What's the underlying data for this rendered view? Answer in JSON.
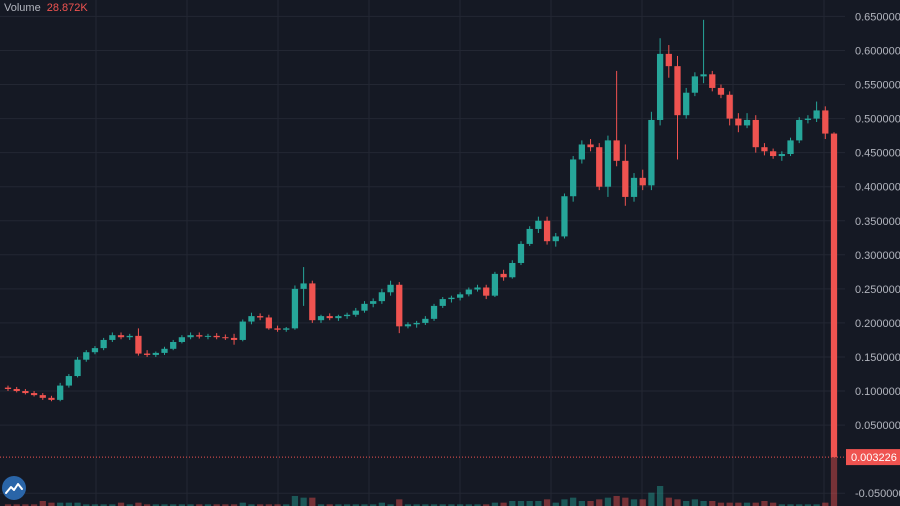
{
  "legend": {
    "label": "Volume",
    "value": "28.872K"
  },
  "colors": {
    "up": "#26a69a",
    "down": "#ef5350",
    "background": "#151924",
    "grid": "#232733",
    "axis_text": "#b2b5be"
  },
  "last_price_label": "0.003226",
  "logo_icon": "tradingview-logo-icon",
  "chart_data": {
    "type": "candlestick",
    "y_axis": {
      "ticks": [
        "0.650000",
        "0.600000",
        "0.550000",
        "0.500000",
        "0.450000",
        "0.400000",
        "0.350000",
        "0.300000",
        "0.250000",
        "0.200000",
        "0.150000",
        "0.100000",
        "0.050000",
        "-0.050000"
      ],
      "range": [
        -0.06,
        0.68
      ],
      "position": "right"
    },
    "grid": true,
    "candles": [
      [
        0.105,
        0.108,
        0.1,
        0.103,
        1
      ],
      [
        0.103,
        0.106,
        0.098,
        0.1,
        1
      ],
      [
        0.1,
        0.103,
        0.095,
        0.097,
        1
      ],
      [
        0.097,
        0.1,
        0.092,
        0.094,
        1
      ],
      [
        0.094,
        0.097,
        0.087,
        0.09,
        3
      ],
      [
        0.09,
        0.093,
        0.085,
        0.087,
        2
      ],
      [
        0.087,
        0.112,
        0.085,
        0.108,
        2
      ],
      [
        0.108,
        0.125,
        0.105,
        0.122,
        2
      ],
      [
        0.122,
        0.15,
        0.12,
        0.146,
        2
      ],
      [
        0.146,
        0.16,
        0.143,
        0.157,
        1
      ],
      [
        0.157,
        0.166,
        0.154,
        0.163,
        1
      ],
      [
        0.163,
        0.178,
        0.16,
        0.175,
        1
      ],
      [
        0.175,
        0.186,
        0.172,
        0.182,
        1
      ],
      [
        0.182,
        0.186,
        0.176,
        0.179,
        2
      ],
      [
        0.179,
        0.184,
        0.175,
        0.181,
        1
      ],
      [
        0.181,
        0.192,
        0.152,
        0.155,
        2
      ],
      [
        0.155,
        0.16,
        0.15,
        0.153,
        1
      ],
      [
        0.153,
        0.158,
        0.15,
        0.156,
        1
      ],
      [
        0.156,
        0.165,
        0.153,
        0.162,
        1
      ],
      [
        0.162,
        0.175,
        0.16,
        0.172,
        1
      ],
      [
        0.172,
        0.182,
        0.17,
        0.179,
        1
      ],
      [
        0.179,
        0.186,
        0.176,
        0.182,
        1
      ],
      [
        0.182,
        0.186,
        0.177,
        0.18,
        1
      ],
      [
        0.18,
        0.184,
        0.176,
        0.181,
        1
      ],
      [
        0.181,
        0.185,
        0.176,
        0.179,
        1
      ],
      [
        0.179,
        0.183,
        0.175,
        0.178,
        1
      ],
      [
        0.178,
        0.184,
        0.168,
        0.175,
        1
      ],
      [
        0.175,
        0.205,
        0.173,
        0.202,
        2
      ],
      [
        0.202,
        0.215,
        0.198,
        0.21,
        1
      ],
      [
        0.21,
        0.214,
        0.204,
        0.208,
        1
      ],
      [
        0.208,
        0.212,
        0.19,
        0.192,
        1
      ],
      [
        0.192,
        0.196,
        0.187,
        0.19,
        1
      ],
      [
        0.19,
        0.194,
        0.187,
        0.192,
        1
      ],
      [
        0.192,
        0.255,
        0.19,
        0.25,
        6
      ],
      [
        0.25,
        0.282,
        0.225,
        0.258,
        5
      ],
      [
        0.258,
        0.262,
        0.2,
        0.204,
        5
      ],
      [
        0.204,
        0.212,
        0.2,
        0.21,
        1
      ],
      [
        0.21,
        0.214,
        0.204,
        0.207,
        1
      ],
      [
        0.207,
        0.212,
        0.203,
        0.21,
        1
      ],
      [
        0.21,
        0.215,
        0.206,
        0.212,
        1
      ],
      [
        0.212,
        0.222,
        0.209,
        0.218,
        1
      ],
      [
        0.218,
        0.232,
        0.215,
        0.228,
        1
      ],
      [
        0.228,
        0.236,
        0.223,
        0.232,
        1
      ],
      [
        0.232,
        0.25,
        0.228,
        0.245,
        2
      ],
      [
        0.245,
        0.262,
        0.24,
        0.256,
        1
      ],
      [
        0.256,
        0.26,
        0.185,
        0.195,
        4
      ],
      [
        0.195,
        0.201,
        0.192,
        0.198,
        1
      ],
      [
        0.198,
        0.203,
        0.193,
        0.2,
        1
      ],
      [
        0.2,
        0.21,
        0.197,
        0.206,
        1
      ],
      [
        0.206,
        0.228,
        0.203,
        0.225,
        1
      ],
      [
        0.225,
        0.238,
        0.222,
        0.235,
        1
      ],
      [
        0.235,
        0.24,
        0.23,
        0.237,
        1
      ],
      [
        0.237,
        0.245,
        0.233,
        0.242,
        1
      ],
      [
        0.242,
        0.252,
        0.239,
        0.249,
        1
      ],
      [
        0.249,
        0.256,
        0.246,
        0.252,
        1
      ],
      [
        0.252,
        0.256,
        0.235,
        0.24,
        1
      ],
      [
        0.24,
        0.275,
        0.238,
        0.272,
        2
      ],
      [
        0.272,
        0.278,
        0.262,
        0.267,
        2
      ],
      [
        0.267,
        0.292,
        0.265,
        0.288,
        3
      ],
      [
        0.288,
        0.32,
        0.285,
        0.316,
        3
      ],
      [
        0.316,
        0.342,
        0.313,
        0.338,
        3
      ],
      [
        0.338,
        0.356,
        0.332,
        0.35,
        3
      ],
      [
        0.35,
        0.356,
        0.315,
        0.32,
        4
      ],
      [
        0.32,
        0.332,
        0.312,
        0.327,
        2
      ],
      [
        0.327,
        0.39,
        0.324,
        0.386,
        4
      ],
      [
        0.386,
        0.445,
        0.378,
        0.44,
        5
      ],
      [
        0.44,
        0.468,
        0.434,
        0.462,
        3
      ],
      [
        0.462,
        0.47,
        0.452,
        0.458,
        3
      ],
      [
        0.458,
        0.464,
        0.395,
        0.4,
        4
      ],
      [
        0.4,
        0.475,
        0.385,
        0.468,
        5
      ],
      [
        0.468,
        0.57,
        0.43,
        0.438,
        6
      ],
      [
        0.438,
        0.462,
        0.372,
        0.385,
        5
      ],
      [
        0.385,
        0.42,
        0.378,
        0.413,
        4
      ],
      [
        0.413,
        0.425,
        0.395,
        0.402,
        4
      ],
      [
        0.402,
        0.51,
        0.395,
        0.498,
        8
      ],
      [
        0.498,
        0.618,
        0.49,
        0.595,
        12
      ],
      [
        0.595,
        0.608,
        0.56,
        0.577,
        5
      ],
      [
        0.577,
        0.592,
        0.44,
        0.505,
        4
      ],
      [
        0.505,
        0.545,
        0.5,
        0.538,
        3
      ],
      [
        0.538,
        0.568,
        0.533,
        0.562,
        4
      ],
      [
        0.562,
        0.645,
        0.552,
        0.565,
        3
      ],
      [
        0.565,
        0.57,
        0.54,
        0.545,
        3
      ],
      [
        0.545,
        0.55,
        0.53,
        0.535,
        2
      ],
      [
        0.535,
        0.54,
        0.49,
        0.5,
        2
      ],
      [
        0.5,
        0.508,
        0.48,
        0.49,
        2
      ],
      [
        0.49,
        0.508,
        0.486,
        0.498,
        2
      ],
      [
        0.498,
        0.505,
        0.45,
        0.458,
        2
      ],
      [
        0.458,
        0.464,
        0.446,
        0.452,
        3
      ],
      [
        0.452,
        0.456,
        0.441,
        0.445,
        2
      ],
      [
        0.445,
        0.452,
        0.438,
        0.448,
        1
      ],
      [
        0.448,
        0.472,
        0.445,
        0.468,
        1
      ],
      [
        0.468,
        0.502,
        0.464,
        0.498,
        1
      ],
      [
        0.498,
        0.505,
        0.493,
        0.5,
        1
      ],
      [
        0.5,
        0.525,
        0.495,
        0.512,
        1
      ],
      [
        0.512,
        0.518,
        0.47,
        0.478,
        2
      ],
      [
        0.478,
        0.48,
        0.003,
        0.003,
        30
      ]
    ]
  }
}
